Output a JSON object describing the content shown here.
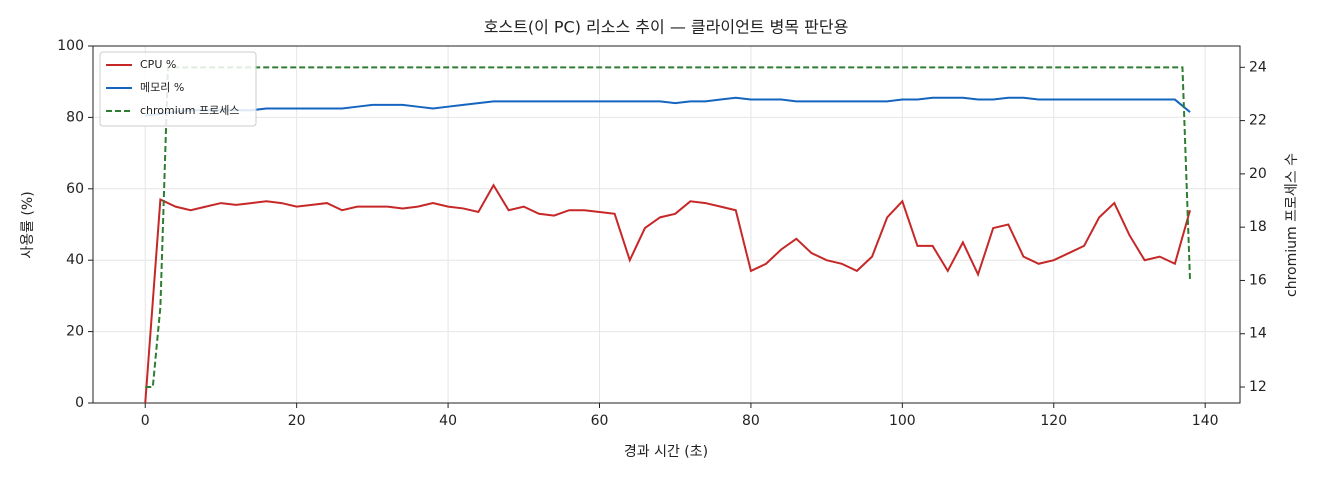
{
  "chart_data": {
    "type": "line",
    "title": "호스트(이 PC) 리소스 추이 — 클라이언트 병목 판단용",
    "x_label": "경과 시간 (초)",
    "y_label": "사용률 (%)",
    "y2_label": "chromium 프로세스 수",
    "xlim": [
      -6.9,
      144.6
    ],
    "xticks": [
      0,
      20,
      40,
      60,
      80,
      100,
      120,
      140
    ],
    "ylim": [
      0,
      100
    ],
    "yticks": [
      0,
      20,
      40,
      60,
      80,
      100
    ],
    "y2lim": [
      11.4,
      24.8
    ],
    "y2ticks": [
      12,
      14,
      16,
      18,
      20,
      22,
      24
    ],
    "grid": true,
    "legend": "upper left",
    "series": [
      {
        "name": "CPU %",
        "color": "#c62828",
        "dash": false,
        "x": [
          0,
          2,
          4,
          6,
          8,
          10,
          12,
          14,
          16,
          18,
          20,
          22,
          24,
          26,
          28,
          30,
          32,
          34,
          36,
          38,
          40,
          42,
          44,
          46,
          48,
          50,
          52,
          54,
          56,
          58,
          60,
          62,
          64,
          66,
          68,
          70,
          72,
          74,
          76,
          78,
          80,
          82,
          84,
          86,
          88,
          90,
          92,
          94,
          96,
          98,
          100,
          102,
          104,
          106,
          108,
          110,
          112,
          114,
          116,
          118,
          120,
          122,
          124,
          126,
          128,
          130,
          132,
          134,
          136,
          138
        ],
        "values": [
          0,
          57,
          55,
          54,
          55,
          56,
          55.5,
          56,
          56.5,
          56,
          55,
          55.5,
          56,
          54,
          55,
          55,
          55,
          54.5,
          55,
          56,
          55,
          54.5,
          53.5,
          61,
          54,
          55,
          53,
          52.5,
          54,
          54,
          53.5,
          53,
          40,
          49,
          52,
          53,
          56.5,
          56,
          55,
          54,
          37,
          39,
          43,
          46,
          42,
          40,
          39,
          37,
          41,
          52,
          56.5,
          44,
          44,
          37,
          45,
          36,
          49,
          50,
          41,
          39,
          40,
          42,
          44,
          52,
          56,
          47,
          40,
          41,
          39,
          54
        ]
      },
      {
        "name": "메모리 %",
        "color": "#1565c0",
        "dash": false,
        "x": [
          0,
          2,
          4,
          6,
          8,
          10,
          12,
          14,
          16,
          18,
          20,
          22,
          24,
          26,
          28,
          30,
          32,
          34,
          36,
          38,
          40,
          42,
          44,
          46,
          48,
          50,
          52,
          54,
          56,
          58,
          60,
          62,
          64,
          66,
          68,
          70,
          72,
          74,
          76,
          78,
          80,
          82,
          84,
          86,
          88,
          90,
          92,
          94,
          96,
          98,
          100,
          102,
          104,
          106,
          108,
          110,
          112,
          114,
          116,
          118,
          120,
          122,
          124,
          126,
          128,
          130,
          132,
          134,
          136,
          138
        ],
        "values": [
          80.5,
          81,
          81.5,
          82,
          82,
          82,
          82,
          82,
          82.5,
          82.5,
          82.5,
          82.5,
          82.5,
          82.5,
          83,
          83.5,
          83.5,
          83.5,
          83,
          82.5,
          83,
          83.5,
          84,
          84.5,
          84.5,
          84.5,
          84.5,
          84.5,
          84.5,
          84.5,
          84.5,
          84.5,
          84.5,
          84.5,
          84.5,
          84,
          84.5,
          84.5,
          85,
          85.5,
          85,
          85,
          85,
          84.5,
          84.5,
          84.5,
          84.5,
          84.5,
          84.5,
          84.5,
          85,
          85,
          85.5,
          85.5,
          85.5,
          85,
          85,
          85.5,
          85.5,
          85,
          85,
          85,
          85,
          85,
          85,
          85,
          85,
          85,
          85,
          81.5
        ]
      },
      {
        "name": "chromium 프로세스",
        "color": "#2e7d32",
        "dash": true,
        "axis": "y2",
        "x": [
          0,
          1,
          2,
          3,
          137,
          138
        ],
        "values": [
          12,
          12,
          15,
          24,
          24,
          16
        ]
      }
    ]
  }
}
